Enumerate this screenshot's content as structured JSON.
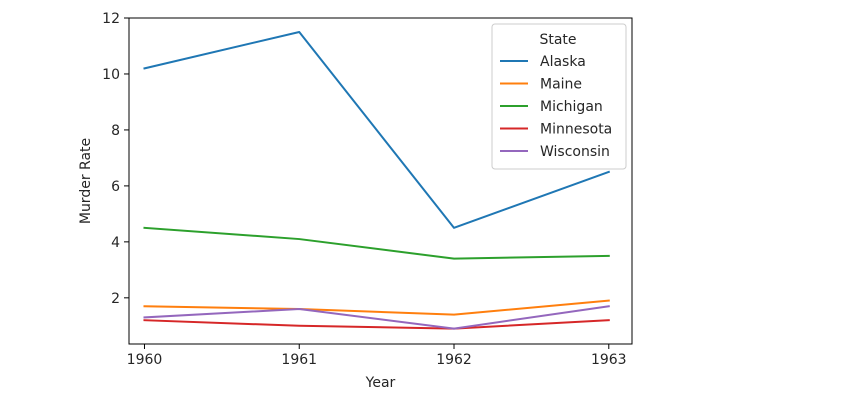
{
  "chart_data": {
    "type": "line",
    "title": "",
    "xlabel": "Year",
    "ylabel": "Murder Rate",
    "x": [
      "1960",
      "1961",
      "1962",
      "1963"
    ],
    "xlim": [
      1959.9,
      1963.15
    ],
    "ylim": [
      0.35,
      12.0
    ],
    "yticks": [
      2,
      4,
      6,
      8,
      10,
      12
    ],
    "grid": false,
    "legend": {
      "title": "State",
      "placement": "upper right"
    },
    "series": [
      {
        "name": "Alaska",
        "color": "#1f77b4",
        "values": [
          10.2,
          11.5,
          4.5,
          6.5
        ]
      },
      {
        "name": "Maine",
        "color": "#ff7f0e",
        "values": [
          1.7,
          1.6,
          1.4,
          1.9
        ]
      },
      {
        "name": "Michigan",
        "color": "#2ca02c",
        "values": [
          4.5,
          4.1,
          3.4,
          3.5
        ]
      },
      {
        "name": "Minnesota",
        "color": "#d62728",
        "values": [
          1.2,
          1.0,
          0.9,
          1.2
        ]
      },
      {
        "name": "Wisconsin",
        "color": "#9467bd",
        "values": [
          1.3,
          1.6,
          0.9,
          1.7
        ]
      }
    ]
  }
}
